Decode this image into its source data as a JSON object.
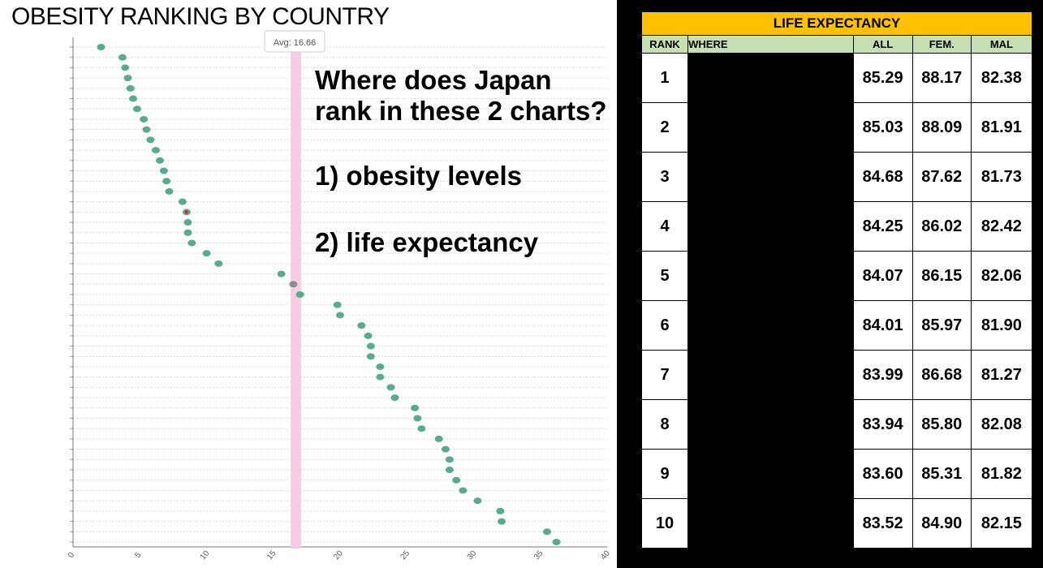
{
  "chart_title": "OBESITY RANKING BY COUNTRY",
  "question": {
    "line1": "Where does Japan",
    "line2": "rank in these 2 charts?",
    "item1": "1) obesity levels",
    "item2": "2) life expectancy"
  },
  "chart_data": {
    "type": "scatter",
    "title": "OBESITY RANKING BY COUNTRY",
    "xlabel": "",
    "ylabel": "",
    "xlim": [
      0,
      40
    ],
    "x_ticks": [
      "0",
      "5",
      "10",
      "15",
      "20",
      "25",
      "30",
      "35",
      "40"
    ],
    "grid": true,
    "series": [
      {
        "values": [
          2.1,
          3.7,
          3.9,
          4.1,
          4.3,
          4.5,
          4.8,
          5.3,
          5.5,
          5.8,
          6.2,
          6.5,
          6.8,
          7.0,
          7.2,
          8.2,
          8.5,
          8.6,
          8.6,
          8.9,
          10.0,
          10.9,
          15.6,
          16.5,
          17.0,
          19.8,
          20.0,
          21.6,
          22.1,
          22.3,
          22.3,
          23.0,
          23.0,
          23.8,
          24.1,
          25.6,
          25.8,
          26.1,
          27.4,
          27.9,
          28.2,
          28.2,
          28.7,
          29.2,
          30.3,
          32.0,
          32.1,
          35.5,
          36.2
        ],
        "color": "#5aab8e"
      }
    ],
    "highlight": {
      "index": 16,
      "label": "Japan",
      "color": "#e0201c"
    },
    "hovered_index": 23,
    "average": {
      "value": 16.66,
      "label": "Avg: 16.66",
      "color": "#f7c6e0"
    }
  },
  "life_expectancy": {
    "title": "LIFE EXPECTANCY",
    "headers": {
      "rank": "RANK",
      "where": "WHERE",
      "all": "ALL",
      "fem": "FEM.",
      "mal": "MAL"
    },
    "rows": [
      {
        "rank": "1",
        "all": "85.29",
        "fem": "88.17",
        "mal": "82.38"
      },
      {
        "rank": "2",
        "all": "85.03",
        "fem": "88.09",
        "mal": "81.91"
      },
      {
        "rank": "3",
        "all": "84.68",
        "fem": "87.62",
        "mal": "81.73"
      },
      {
        "rank": "4",
        "all": "84.25",
        "fem": "86.02",
        "mal": "82.42"
      },
      {
        "rank": "5",
        "all": "84.07",
        "fem": "86.15",
        "mal": "82.06"
      },
      {
        "rank": "6",
        "all": "84.01",
        "fem": "85.97",
        "mal": "81.90"
      },
      {
        "rank": "7",
        "all": "83.99",
        "fem": "86.68",
        "mal": "81.27"
      },
      {
        "rank": "8",
        "all": "83.94",
        "fem": "85.80",
        "mal": "82.08"
      },
      {
        "rank": "9",
        "all": "83.60",
        "fem": "85.31",
        "mal": "81.82"
      },
      {
        "rank": "10",
        "all": "83.52",
        "fem": "84.90",
        "mal": "82.15"
      }
    ]
  }
}
